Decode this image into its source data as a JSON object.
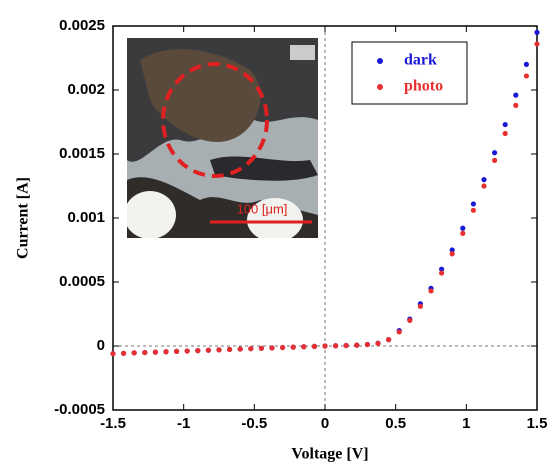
{
  "chart_data": {
    "type": "scatter",
    "x_label": "Voltage [V]",
    "y_label": "Current [A]",
    "xlim": [
      -1.5,
      1.5
    ],
    "xticks": [
      -1.5,
      -1,
      -0.5,
      0,
      0.5,
      1,
      1.5
    ],
    "ylim": [
      -0.0005,
      0.0025
    ],
    "yticks": [
      -0.0005,
      0,
      0.0005,
      0.001,
      0.0015,
      0.002,
      0.0025
    ],
    "x": [
      -1.5,
      -1.425,
      -1.35,
      -1.275,
      -1.2,
      -1.125,
      -1.05,
      -0.975,
      -0.9,
      -0.825,
      -0.75,
      -0.675,
      -0.6,
      -0.525,
      -0.45,
      -0.375,
      -0.3,
      -0.225,
      -0.15,
      -0.075,
      0,
      0.075,
      0.15,
      0.225,
      0.3,
      0.375,
      0.45,
      0.525,
      0.6,
      0.675,
      0.75,
      0.825,
      0.9,
      0.975,
      1.05,
      1.125,
      1.2,
      1.275,
      1.35,
      1.425,
      1.5
    ],
    "series": [
      {
        "name": "dark",
        "color": "#1a1ad6",
        "values": [
          -6e-05,
          -5.7e-05,
          -5.4e-05,
          -5.1e-05,
          -4.8e-05,
          -4.5e-05,
          -4.2e-05,
          -3.9e-05,
          -3.6e-05,
          -3.3e-05,
          -3e-05,
          -2.7e-05,
          -2.4e-05,
          -2.1e-05,
          -1.8e-05,
          -1.5e-05,
          -1.2e-05,
          -9e-06,
          -6e-06,
          -3e-06,
          0,
          2e-06,
          4e-06,
          7e-06,
          1.2e-05,
          2.2e-05,
          5e-05,
          0.00012,
          0.00021,
          0.00033,
          0.00045,
          0.0006,
          0.00075,
          0.00092,
          0.00111,
          0.0013,
          0.00151,
          0.00173,
          0.00196,
          0.0022,
          0.00245
        ]
      },
      {
        "name": "photo",
        "color": "#e83030",
        "values": [
          -6e-05,
          -5.7e-05,
          -5.4e-05,
          -5.1e-05,
          -4.8e-05,
          -4.5e-05,
          -4.2e-05,
          -3.9e-05,
          -3.6e-05,
          -3.3e-05,
          -3e-05,
          -2.7e-05,
          -2.4e-05,
          -2.1e-05,
          -1.8e-05,
          -1.5e-05,
          -1.2e-05,
          -9e-06,
          -6e-06,
          -3e-06,
          0,
          2e-06,
          4e-06,
          7e-06,
          1.1e-05,
          2e-05,
          5e-05,
          0.00011,
          0.0002,
          0.00031,
          0.00043,
          0.00057,
          0.00072,
          0.00088,
          0.00106,
          0.00125,
          0.00145,
          0.00166,
          0.00188,
          0.00211,
          0.00236
        ]
      }
    ],
    "legend": "upper right"
  },
  "inset_label": "100 [μm]"
}
